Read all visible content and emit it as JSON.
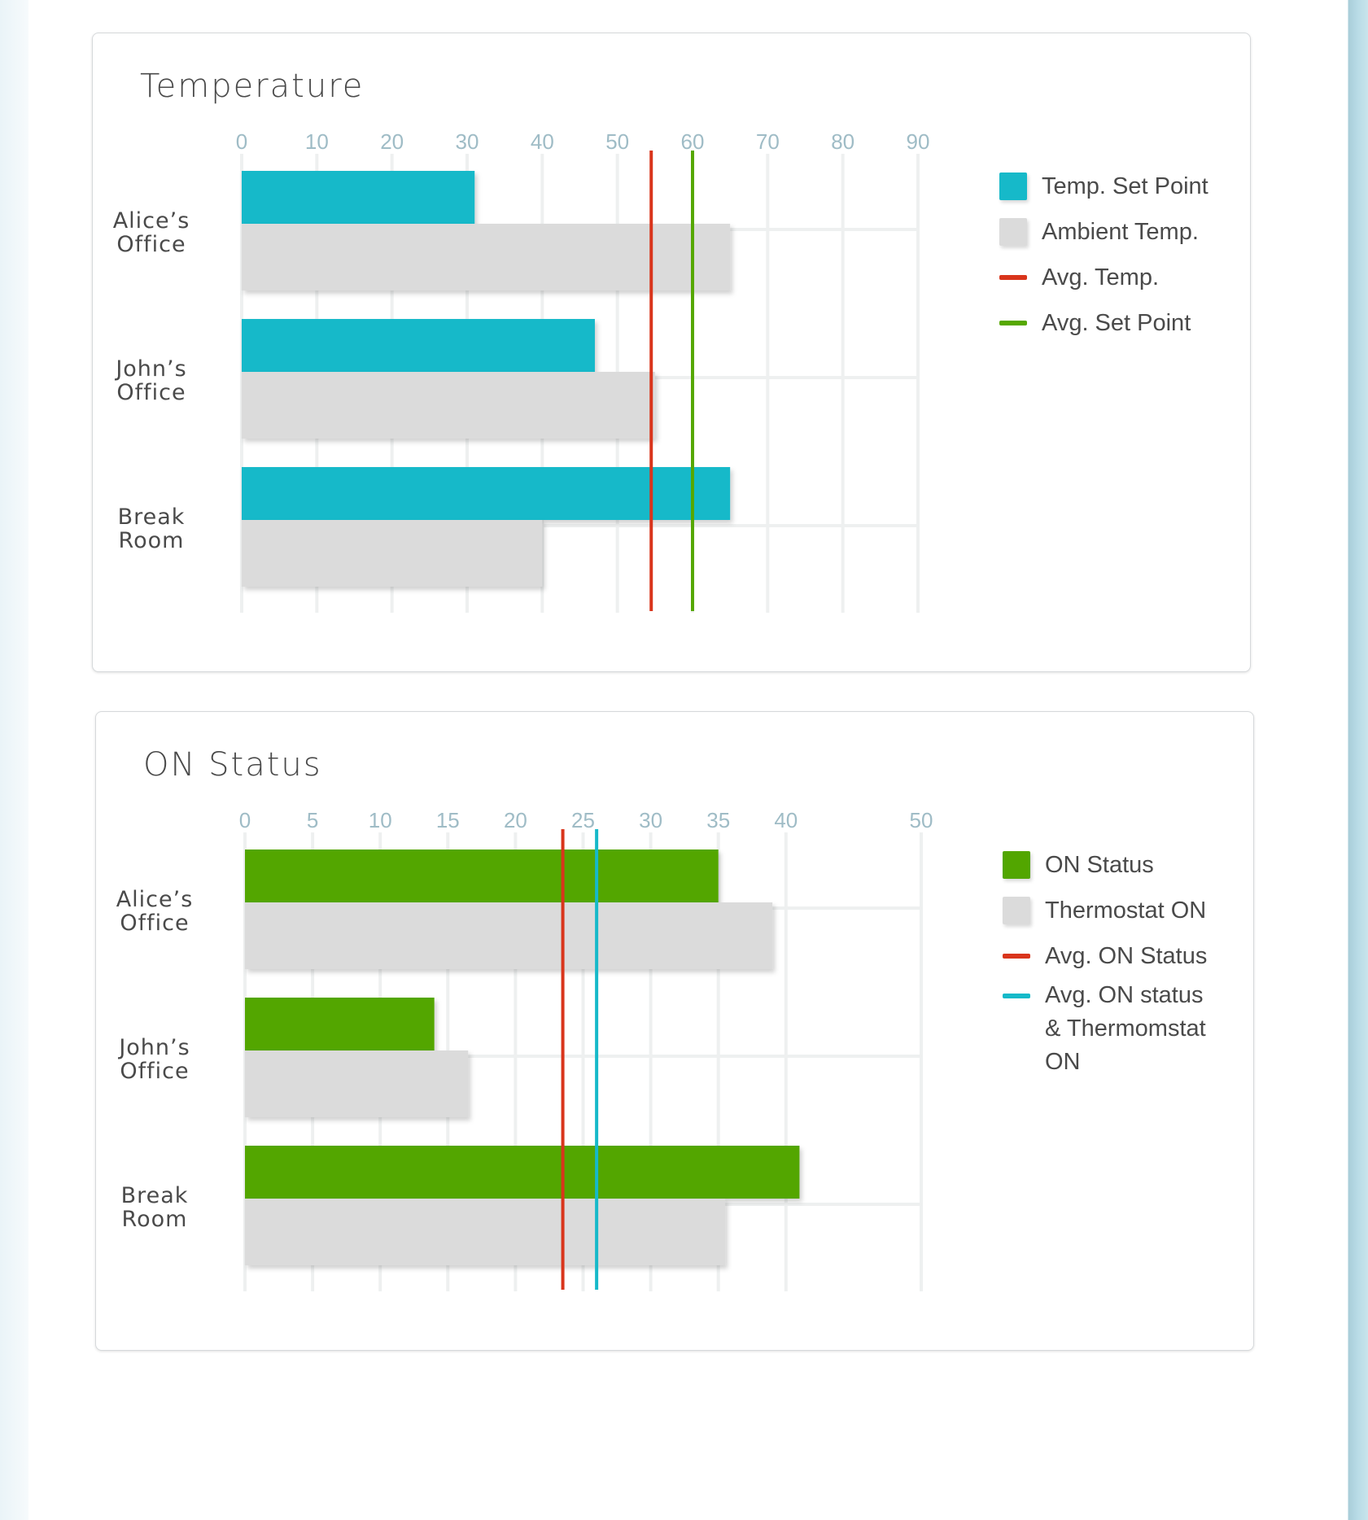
{
  "chart_data": [
    {
      "type": "bar",
      "title": "Temperature",
      "categories": [
        [
          "Alice’s",
          "Office"
        ],
        [
          "John’s",
          "Office"
        ],
        [
          "Break",
          "Room"
        ]
      ],
      "xticks": [
        0,
        10,
        20,
        30,
        40,
        50,
        60,
        70,
        80,
        90
      ],
      "xlim": [
        0,
        90
      ],
      "series": [
        {
          "name": "Temp. Set Point",
          "color": "#16b9c9",
          "values": [
            31,
            47,
            65
          ]
        },
        {
          "name": "Ambient Temp.",
          "color": "#dbdbdb",
          "values": [
            65,
            55,
            40
          ]
        }
      ],
      "reference_lines": [
        {
          "name": "Avg. Temp.",
          "color": "#d9351c",
          "value": 54.5
        },
        {
          "name": "Avg. Set Point",
          "color": "#56a800",
          "value": 60
        }
      ],
      "legend_position": "right"
    },
    {
      "type": "bar",
      "title": "ON Status",
      "categories": [
        [
          "Alice’s",
          "Office"
        ],
        [
          "John’s",
          "Office"
        ],
        [
          "Break",
          "Room"
        ]
      ],
      "xticks": [
        0,
        5,
        10,
        15,
        20,
        25,
        30,
        35,
        40,
        50
      ],
      "xlim": [
        0,
        50
      ],
      "series": [
        {
          "name": "ON Status",
          "color": "#52a600",
          "values": [
            35,
            14,
            41
          ]
        },
        {
          "name": "Thermostat ON",
          "color": "#dbdbdb",
          "values": [
            39,
            16.5,
            35.5
          ]
        }
      ],
      "reference_lines": [
        {
          "name": "Avg. ON Status",
          "color": "#d9351c",
          "value": 23.5
        },
        {
          "name": "Avg. ON status & Thermomstat ON",
          "color": "#16b9c9",
          "value": 26
        }
      ],
      "legend_position": "right"
    }
  ]
}
